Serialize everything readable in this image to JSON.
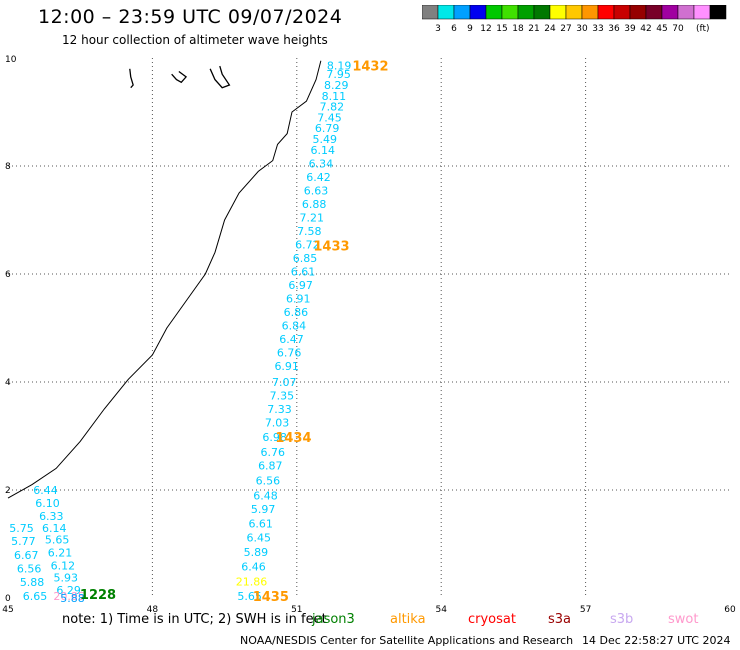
{
  "title": "12:00 – 23:59 UTC 09/07/2024",
  "subtitle": "12 hour collection of altimeter wave heights",
  "colorbar": {
    "colors": [
      "#808080",
      "#00e8e8",
      "#00a0ff",
      "#0000f0",
      "#00c800",
      "#40e000",
      "#00a000",
      "#007800",
      "#ffff00",
      "#ffc800",
      "#ff9600",
      "#ff0000",
      "#c80000",
      "#960000",
      "#780028",
      "#a000a0",
      "#d070d0",
      "#ff90ff",
      "#000000"
    ],
    "labels": [
      "3",
      "6",
      "9",
      "12",
      "15",
      "18",
      "21",
      "24",
      "27",
      "30",
      "33",
      "36",
      "39",
      "42",
      "45",
      "70",
      "(ft)"
    ]
  },
  "note": "note: 1) Time is in UTC; 2) SWH is in feet",
  "legend": [
    {
      "name": "jason3",
      "color": "#008000"
    },
    {
      "name": "altika",
      "color": "#ff9900"
    },
    {
      "name": "cryosat",
      "color": "#ff0000"
    },
    {
      "name": "s3a",
      "color": "#990000"
    },
    {
      "name": "s3b",
      "color": "#c8a8f0"
    },
    {
      "name": "swot",
      "color": "#ff99cc"
    }
  ],
  "credit": "NOAA/NESDIS Center for Satellite Applications and Research",
  "timestamp": "14 Dec 22:58:27 UTC 2024",
  "chart_data": {
    "type": "scatter",
    "xlim": [
      45,
      60
    ],
    "ylim": [
      0,
      10
    ],
    "x_ticks": [
      "45",
      "48",
      "51",
      "54",
      "57",
      "60"
    ],
    "y_ticks": [
      "0",
      "2",
      "4",
      "6",
      "8",
      "10"
    ],
    "grid": "dotted",
    "series": [
      {
        "color": "#00ccff",
        "points": [
          {
            "x": 51.88,
            "y": 9.86,
            "v": "8.19"
          },
          {
            "x": 51.87,
            "y": 9.7,
            "v": "7.95"
          },
          {
            "x": 51.82,
            "y": 9.5,
            "v": "8.29"
          },
          {
            "x": 51.77,
            "y": 9.3,
            "v": "8.11"
          },
          {
            "x": 51.73,
            "y": 9.1,
            "v": "7.82"
          },
          {
            "x": 51.68,
            "y": 8.9,
            "v": "7.45"
          },
          {
            "x": 51.63,
            "y": 8.7,
            "v": "6.79"
          },
          {
            "x": 51.58,
            "y": 8.5,
            "v": "5.49"
          },
          {
            "x": 51.54,
            "y": 8.3,
            "v": "6.14"
          },
          {
            "x": 51.5,
            "y": 8.05,
            "v": "6.34"
          },
          {
            "x": 51.45,
            "y": 7.8,
            "v": "6.42"
          },
          {
            "x": 51.4,
            "y": 7.55,
            "v": "6.63"
          },
          {
            "x": 51.36,
            "y": 7.3,
            "v": "6.88"
          },
          {
            "x": 51.31,
            "y": 7.05,
            "v": "7.21"
          },
          {
            "x": 51.26,
            "y": 6.8,
            "v": "7.58"
          },
          {
            "x": 51.22,
            "y": 6.55,
            "v": "6.72"
          },
          {
            "x": 51.17,
            "y": 6.3,
            "v": "6.85"
          },
          {
            "x": 51.13,
            "y": 6.05,
            "v": "6.61"
          },
          {
            "x": 51.08,
            "y": 5.8,
            "v": "6.97"
          },
          {
            "x": 51.03,
            "y": 5.55,
            "v": "6.91"
          },
          {
            "x": 50.98,
            "y": 5.3,
            "v": "6.86"
          },
          {
            "x": 50.94,
            "y": 5.05,
            "v": "6.84"
          },
          {
            "x": 50.89,
            "y": 4.8,
            "v": "6.47"
          },
          {
            "x": 50.84,
            "y": 4.55,
            "v": "6.76"
          },
          {
            "x": 50.79,
            "y": 4.3,
            "v": "6.91"
          },
          {
            "x": 50.74,
            "y": 4.0,
            "v": "7.07"
          },
          {
            "x": 50.69,
            "y": 3.75,
            "v": "7.35"
          },
          {
            "x": 50.64,
            "y": 3.5,
            "v": "7.33"
          },
          {
            "x": 50.59,
            "y": 3.25,
            "v": "7.03"
          },
          {
            "x": 50.54,
            "y": 2.98,
            "v": "6.98"
          },
          {
            "x": 50.5,
            "y": 2.7,
            "v": "6.76"
          },
          {
            "x": 50.45,
            "y": 2.45,
            "v": "6.87"
          },
          {
            "x": 50.4,
            "y": 2.18,
            "v": "6.56"
          },
          {
            "x": 50.35,
            "y": 1.9,
            "v": "6.48"
          },
          {
            "x": 50.3,
            "y": 1.65,
            "v": "5.97"
          },
          {
            "x": 50.25,
            "y": 1.38,
            "v": "6.61"
          },
          {
            "x": 50.21,
            "y": 1.12,
            "v": "6.45"
          },
          {
            "x": 50.15,
            "y": 0.85,
            "v": "5.89"
          },
          {
            "x": 50.1,
            "y": 0.58,
            "v": "6.46"
          },
          {
            "x": 50.02,
            "y": 0.04,
            "v": "5.65"
          },
          {
            "x": 45.78,
            "y": 2.0,
            "v": "6.44"
          },
          {
            "x": 45.82,
            "y": 1.76,
            "v": "6.10"
          },
          {
            "x": 45.9,
            "y": 1.52,
            "v": "6.33"
          },
          {
            "x": 45.96,
            "y": 1.3,
            "v": "6.14"
          },
          {
            "x": 46.02,
            "y": 1.08,
            "v": "5.65"
          },
          {
            "x": 46.08,
            "y": 0.84,
            "v": "6.21"
          },
          {
            "x": 46.14,
            "y": 0.6,
            "v": "6.12"
          },
          {
            "x": 46.2,
            "y": 0.38,
            "v": "5.93"
          },
          {
            "x": 46.26,
            "y": 0.15,
            "v": "6.29"
          },
          {
            "x": 45.28,
            "y": 1.3,
            "v": "5.75"
          },
          {
            "x": 45.32,
            "y": 1.06,
            "v": "5.77"
          },
          {
            "x": 45.38,
            "y": 0.8,
            "v": "6.67"
          },
          {
            "x": 45.44,
            "y": 0.55,
            "v": "6.56"
          },
          {
            "x": 45.5,
            "y": 0.3,
            "v": "5.88"
          },
          {
            "x": 45.56,
            "y": 0.04,
            "v": "6.65"
          }
        ]
      },
      {
        "color": "#ffff00",
        "points": [
          {
            "x": 50.06,
            "y": 0.31,
            "v": "21.86"
          }
        ]
      },
      {
        "color": "#ff99cc",
        "points": [
          {
            "x": 46.27,
            "y": 0.04,
            "v": "20.85"
          }
        ]
      },
      {
        "color": "#00a0ff",
        "points": [
          {
            "x": 46.34,
            "y": 0.0,
            "v": "5.88"
          }
        ]
      }
    ],
    "pass_labels": [
      {
        "x": 52.53,
        "y": 9.86,
        "text": "1432",
        "color": "#ff9900"
      },
      {
        "x": 51.72,
        "y": 6.53,
        "text": "1433",
        "color": "#ff9900"
      },
      {
        "x": 50.93,
        "y": 2.98,
        "text": "1434",
        "color": "#ff9900"
      },
      {
        "x": 50.46,
        "y": 0.04,
        "text": "1435",
        "color": "#ff9900"
      },
      {
        "x": 46.87,
        "y": 0.07,
        "text": "1228",
        "color": "#008000"
      }
    ]
  }
}
